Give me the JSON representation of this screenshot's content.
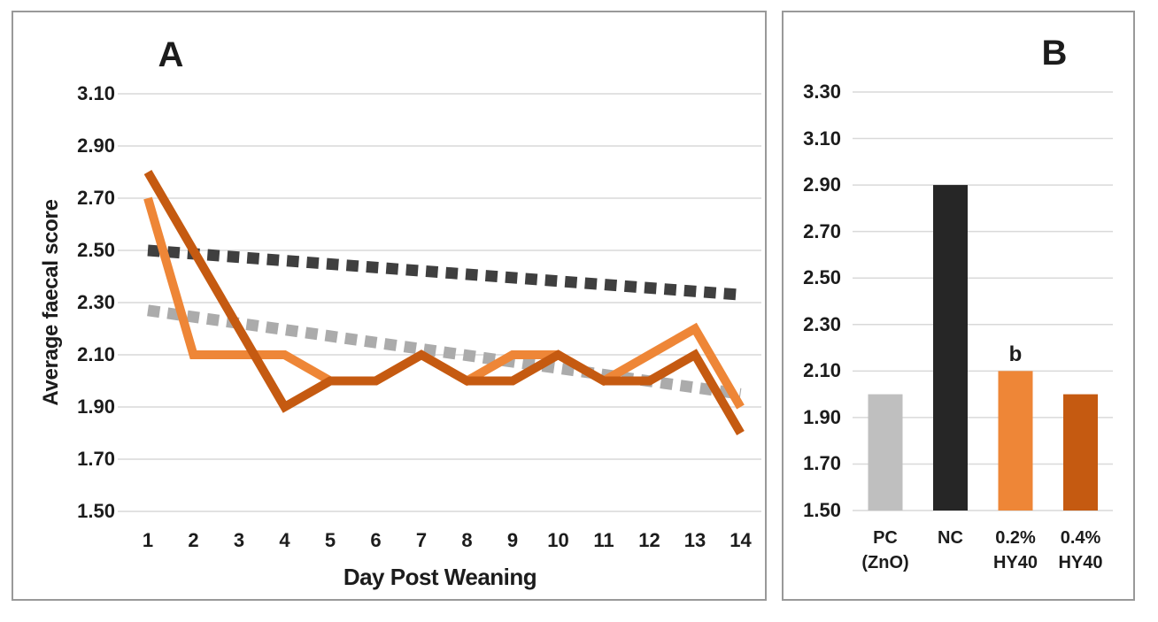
{
  "colors": {
    "orange": "#EE8637",
    "dark_orange": "#C55A11",
    "gray_bar": "#BFBFBF",
    "black_bar": "#262626",
    "dark_dash": "#3F3F3F",
    "gray_dash": "#ABABAB",
    "gridline": "#D9D9D9",
    "panel_border": "#999999",
    "text": "#1C1C1C"
  },
  "chart_data": [
    {
      "type": "line",
      "title": "A",
      "xlabel": "Day Post Weaning",
      "ylabel": "Average faecal score",
      "x": [
        1,
        2,
        3,
        4,
        5,
        6,
        7,
        8,
        9,
        10,
        11,
        12,
        13,
        14
      ],
      "x_tick_labels": [
        "1",
        "2",
        "3",
        "4",
        "5",
        "6",
        "7",
        "8",
        "9",
        "10",
        "11",
        "12",
        "13",
        "14"
      ],
      "y_tick_labels": [
        "3.10",
        "2.90",
        "2.70",
        "2.50",
        "2.30",
        "2.10",
        "1.90",
        "1.70",
        "1.50"
      ],
      "ylim": [
        1.5,
        3.1
      ],
      "grid": true,
      "legend": "none",
      "series": [
        {
          "name": "NC",
          "style": "dashed",
          "color": "#3F3F3F",
          "trend": true,
          "x_range": [
            1,
            14
          ],
          "value_range": [
            2.5,
            2.33
          ]
        },
        {
          "name": "PC (ZnO)",
          "style": "dashed",
          "color": "#ABABAB",
          "trend": true,
          "x_range": [
            1,
            14
          ],
          "value_range": [
            2.27,
            1.95
          ]
        },
        {
          "name": "0.2% HY40",
          "style": "solid",
          "color": "#EE8637",
          "values": [
            2.7,
            2.1,
            2.1,
            2.1,
            2.0,
            2.0,
            2.1,
            2.0,
            2.1,
            2.1,
            2.0,
            2.1,
            2.2,
            1.9
          ]
        },
        {
          "name": "0.4% HY40",
          "style": "solid",
          "color": "#C55A11",
          "values": [
            2.8,
            2.5,
            2.2,
            1.9,
            2.0,
            2.0,
            2.1,
            2.0,
            2.0,
            2.1,
            2.0,
            2.0,
            2.1,
            1.8
          ]
        }
      ]
    },
    {
      "type": "bar",
      "title": "B",
      "categories": [
        "PC (ZnO)",
        "NC",
        "0.2% HY40",
        "0.4% HY40"
      ],
      "category_lines": [
        [
          "PC",
          "(ZnO)"
        ],
        [
          "NC"
        ],
        [
          "0.2%",
          "HY40"
        ],
        [
          "0.4%",
          "HY40"
        ]
      ],
      "values": [
        2.0,
        2.9,
        2.1,
        2.0
      ],
      "bar_colors": [
        "#BFBFBF",
        "#262626",
        "#EE8637",
        "#C55A11"
      ],
      "y_tick_labels": [
        "3.30",
        "3.10",
        "2.90",
        "2.70",
        "2.50",
        "2.30",
        "2.10",
        "1.90",
        "1.70",
        "1.50"
      ],
      "ylim": [
        1.5,
        3.3
      ],
      "grid": true,
      "annotations": [
        {
          "category": "0.2% HY40",
          "bar_index": 2,
          "text": "b"
        }
      ]
    }
  ]
}
